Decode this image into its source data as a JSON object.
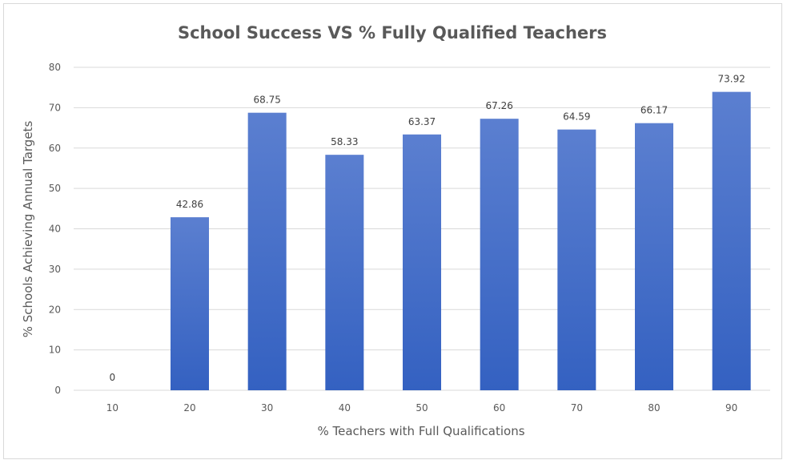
{
  "chart_data": {
    "type": "bar",
    "title": "School Success VS % Fully Qualified Teachers",
    "xlabel": "% Teachers with Full Qualifications",
    "ylabel": "% Schools Achieving Annual Targets",
    "categories": [
      "10",
      "20",
      "30",
      "40",
      "50",
      "60",
      "70",
      "80",
      "90"
    ],
    "values": [
      0,
      42.86,
      68.75,
      58.33,
      63.37,
      67.26,
      64.59,
      66.17,
      73.92
    ],
    "data_labels": [
      "0",
      "42.86",
      "68.75",
      "58.33",
      "63.37",
      "67.26",
      "64.59",
      "66.17",
      "73.92"
    ],
    "ylim": [
      0,
      80
    ],
    "yticks": [
      "0",
      "10",
      "20",
      "30",
      "40",
      "50",
      "60",
      "70",
      "80"
    ],
    "grid": true,
    "legend": "none",
    "colors": {
      "bar_top": "#5b7fd0",
      "bar_bottom": "#3461c1",
      "grid": "#d9d9d9",
      "text": "#595959"
    }
  }
}
